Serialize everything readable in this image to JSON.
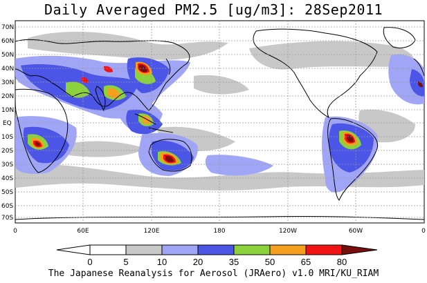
{
  "title": "Daily Averaged PM2.5 [ug/m3]: 28Sep2011",
  "footer": "The Japanese Reanalysis for Aerosol (JRAero) v1.0 MRI/KU_RIAM",
  "y_labels": [
    "70N",
    "60N",
    "50N",
    "40N",
    "30N",
    "20N",
    "10N",
    "EQ",
    "10S",
    "20S",
    "30S",
    "40S",
    "50S",
    "60S",
    "70S"
  ],
  "x_labels": [
    "0",
    "60E",
    "120E",
    "180",
    "120W",
    "60W",
    "0"
  ],
  "colorbar": {
    "ticks": [
      "0",
      "5",
      "10",
      "20",
      "35",
      "50",
      "65",
      "80"
    ],
    "colors": [
      "#ffffff",
      "#c8c8c8",
      "#a0a5f5",
      "#4b55e6",
      "#8cd23c",
      "#f5a01e",
      "#f01414",
      "#780f0f"
    ]
  },
  "map_colors": {
    "land": "#000000",
    "grid": "#9a9a9a"
  }
}
